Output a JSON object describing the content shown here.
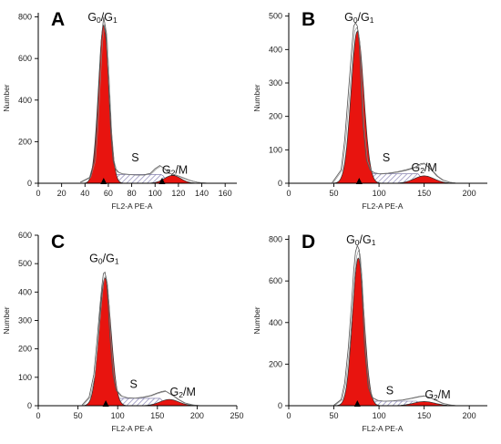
{
  "colors": {
    "g0g1_fill": "#e8140f",
    "g2m_fill": "#e8140f",
    "s_phase_hatch": "#8a86b8",
    "trace": "#555555"
  },
  "chart_data": [
    {
      "type": "area",
      "panel_label": "A",
      "xlabel": "FL2-A PE-A",
      "ylabel": "Number",
      "xlim": [
        0,
        170
      ],
      "ylim": [
        0,
        820
      ],
      "x_ticks": [
        0,
        20,
        40,
        60,
        80,
        100,
        120,
        140,
        160
      ],
      "y_ticks": [
        0,
        200,
        400,
        600,
        800
      ],
      "x_tick_labels": [
        "0",
        "20",
        "40",
        "60",
        "80",
        "100",
        "120",
        "140",
        "160"
      ],
      "y_tick_labels": [
        "0",
        "200",
        "400",
        "600",
        "800"
      ],
      "markers_x": [
        56,
        106
      ],
      "phase_labels": {
        "g0g1": {
          "main": "G",
          "sub1": "0",
          "sep": "/G",
          "sub2": "1",
          "x": 55,
          "y": 780
        },
        "s": {
          "main": "S",
          "x": 83,
          "y": 105
        },
        "g2m": {
          "main": "G",
          "sub": "2",
          "rest": "/M",
          "x": 117,
          "y": 45
        }
      },
      "g0g1_peak": {
        "center": 56,
        "sigma": 4.5,
        "height": 760
      },
      "g2m_peak": {
        "center": 115,
        "sigma": 7,
        "height": 38
      },
      "s_phase": {
        "start": 60,
        "end": 112,
        "level": 42
      },
      "trace_x": [
        36,
        44,
        48,
        50,
        52,
        54,
        56,
        58,
        60,
        62,
        64,
        66,
        68,
        72,
        78,
        84,
        90,
        96,
        100,
        104,
        108,
        112,
        116,
        120,
        124,
        128,
        132,
        136,
        140,
        146
      ],
      "trace_y": [
        5,
        28,
        110,
        260,
        480,
        690,
        800,
        730,
        500,
        250,
        110,
        70,
        55,
        45,
        42,
        40,
        40,
        48,
        70,
        85,
        70,
        48,
        42,
        35,
        26,
        17,
        10,
        5,
        2,
        0
      ]
    },
    {
      "type": "area",
      "panel_label": "B",
      "xlabel": "FL2-A PE-A",
      "ylabel": "Number",
      "xlim": [
        0,
        220
      ],
      "ylim": [
        0,
        510
      ],
      "x_ticks": [
        0,
        50,
        100,
        150,
        200
      ],
      "y_ticks": [
        0,
        100,
        200,
        300,
        400,
        500
      ],
      "x_tick_labels": [
        "0",
        "50",
        "100",
        "150",
        "200"
      ],
      "y_tick_labels": [
        "0",
        "100",
        "200",
        "300",
        "400",
        "500"
      ],
      "markers_x": [
        78
      ],
      "phase_labels": {
        "g0g1": {
          "main": "G",
          "sub1": "0",
          "sep": "/G",
          "sub2": "1",
          "x": 78,
          "y": 485
        },
        "s": {
          "main": "S",
          "x": 108,
          "y": 65
        },
        "g2m": {
          "main": "G",
          "sub": "2",
          "rest": "/M",
          "x": 150,
          "y": 35
        }
      },
      "g0g1_peak": {
        "center": 76,
        "sigma": 7,
        "height": 455
      },
      "g2m_peak": {
        "center": 150,
        "sigma": 11,
        "height": 22
      },
      "s_phase": {
        "start": 82,
        "end": 150,
        "level": 28
      },
      "trace_x": [
        48,
        58,
        62,
        66,
        70,
        72,
        74,
        76,
        78,
        80,
        82,
        86,
        90,
        94,
        100,
        110,
        120,
        130,
        140,
        146,
        150,
        154,
        158,
        164,
        170,
        178,
        186
      ],
      "trace_y": [
        2,
        40,
        130,
        270,
        410,
        470,
        480,
        470,
        420,
        300,
        180,
        70,
        40,
        32,
        28,
        30,
        34,
        40,
        48,
        58,
        60,
        50,
        40,
        22,
        10,
        3,
        0
      ]
    },
    {
      "type": "area",
      "panel_label": "C",
      "xlabel": "FL2-A PE-A",
      "ylabel": "Number",
      "xlim": [
        0,
        250
      ],
      "ylim": [
        0,
        600
      ],
      "x_ticks": [
        0,
        50,
        100,
        150,
        200,
        250
      ],
      "y_ticks": [
        0,
        100,
        200,
        300,
        400,
        500,
        600
      ],
      "x_tick_labels": [
        "0",
        "50",
        "100",
        "150",
        "200",
        "250"
      ],
      "y_tick_labels": [
        "0",
        "100",
        "200",
        "300",
        "400",
        "500",
        "600"
      ],
      "markers_x": [
        85
      ],
      "phase_labels": {
        "g0g1": {
          "main": "G",
          "sub1": "0",
          "sep": "/G",
          "sub2": "1",
          "x": 83,
          "y": 505
        },
        "s": {
          "main": "S",
          "x": 120,
          "y": 62
        },
        "g2m": {
          "main": "G",
          "sub": "2",
          "rest": "/M",
          "x": 182,
          "y": 35
        }
      },
      "g0g1_peak": {
        "center": 84,
        "sigma": 7.5,
        "height": 450
      },
      "g2m_peak": {
        "center": 165,
        "sigma": 12,
        "height": 22
      },
      "s_phase": {
        "start": 92,
        "end": 160,
        "level": 26
      },
      "trace_x": [
        55,
        64,
        70,
        74,
        78,
        80,
        82,
        84,
        86,
        88,
        90,
        94,
        98,
        104,
        112,
        122,
        132,
        142,
        150,
        156,
        160,
        164,
        170,
        176,
        184,
        194,
        204
      ],
      "trace_y": [
        2,
        30,
        110,
        230,
        360,
        420,
        465,
        470,
        440,
        360,
        250,
        110,
        55,
        35,
        28,
        27,
        30,
        36,
        45,
        50,
        52,
        45,
        35,
        22,
        10,
        3,
        0
      ]
    },
    {
      "type": "area",
      "panel_label": "D",
      "xlabel": "FL2-A PE-A",
      "ylabel": "Number",
      "xlim": [
        0,
        220
      ],
      "ylim": [
        0,
        820
      ],
      "x_ticks": [
        0,
        50,
        100,
        150,
        200
      ],
      "y_ticks": [
        0,
        200,
        400,
        600,
        800
      ],
      "x_tick_labels": [
        "0",
        "50",
        "100",
        "150",
        "200"
      ],
      "y_tick_labels": [
        "0",
        "200",
        "400",
        "600",
        "800"
      ],
      "markers_x": [
        76
      ],
      "phase_labels": {
        "g0g1": {
          "main": "G",
          "sub1": "0",
          "sep": "/G",
          "sub2": "1",
          "x": 80,
          "y": 780
        },
        "s": {
          "main": "S",
          "x": 112,
          "y": 55
        },
        "g2m": {
          "main": "G",
          "sub": "2",
          "rest": "/M",
          "x": 165,
          "y": 35
        }
      },
      "g0g1_peak": {
        "center": 77,
        "sigma": 6.5,
        "height": 710
      },
      "g2m_peak": {
        "center": 150,
        "sigma": 12,
        "height": 20
      },
      "s_phase": {
        "start": 84,
        "end": 148,
        "level": 22
      },
      "trace_x": [
        50,
        58,
        62,
        66,
        70,
        72,
        74,
        76,
        78,
        80,
        82,
        84,
        88,
        92,
        98,
        106,
        116,
        126,
        136,
        144,
        150,
        156,
        162,
        170,
        178,
        186
      ],
      "trace_y": [
        2,
        30,
        110,
        280,
        520,
        650,
        740,
        770,
        750,
        640,
        460,
        280,
        90,
        40,
        26,
        22,
        24,
        28,
        36,
        44,
        48,
        40,
        28,
        12,
        4,
        0
      ]
    }
  ]
}
